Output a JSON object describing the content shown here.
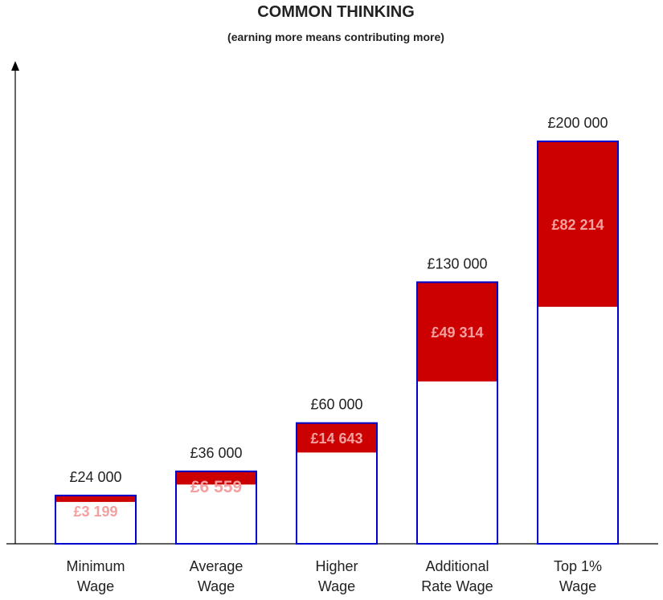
{
  "title": "COMMON THINKING",
  "subtitle": "(earning more means contributing more)",
  "colors": {
    "bar_border": "#0000cc",
    "bar_fill": "#ffffff",
    "tax_fill": "#cc0000",
    "tax_label": "#f4a0a0",
    "axis": "#000000",
    "text": "#222222"
  },
  "chart_data": {
    "type": "bar",
    "stacked": true,
    "categories": [
      [
        "Minimum",
        "Wage"
      ],
      [
        "Average",
        "Wage"
      ],
      [
        "Higher",
        "Wage"
      ],
      [
        "Additional",
        "Rate Wage"
      ],
      [
        "Top 1%",
        "Wage"
      ]
    ],
    "totals": [
      24000,
      36000,
      60000,
      130000,
      200000
    ],
    "total_labels": [
      "£24 000",
      "£36 000",
      "£60 000",
      "£130 000",
      "£200 000"
    ],
    "contributions": [
      3199,
      6559,
      14643,
      49314,
      82214
    ],
    "contribution_labels": [
      "£3 199",
      "£6 559",
      "£14 643",
      "£49 314",
      "£82 214"
    ],
    "ylim": [
      0,
      240000
    ],
    "grid": false
  }
}
